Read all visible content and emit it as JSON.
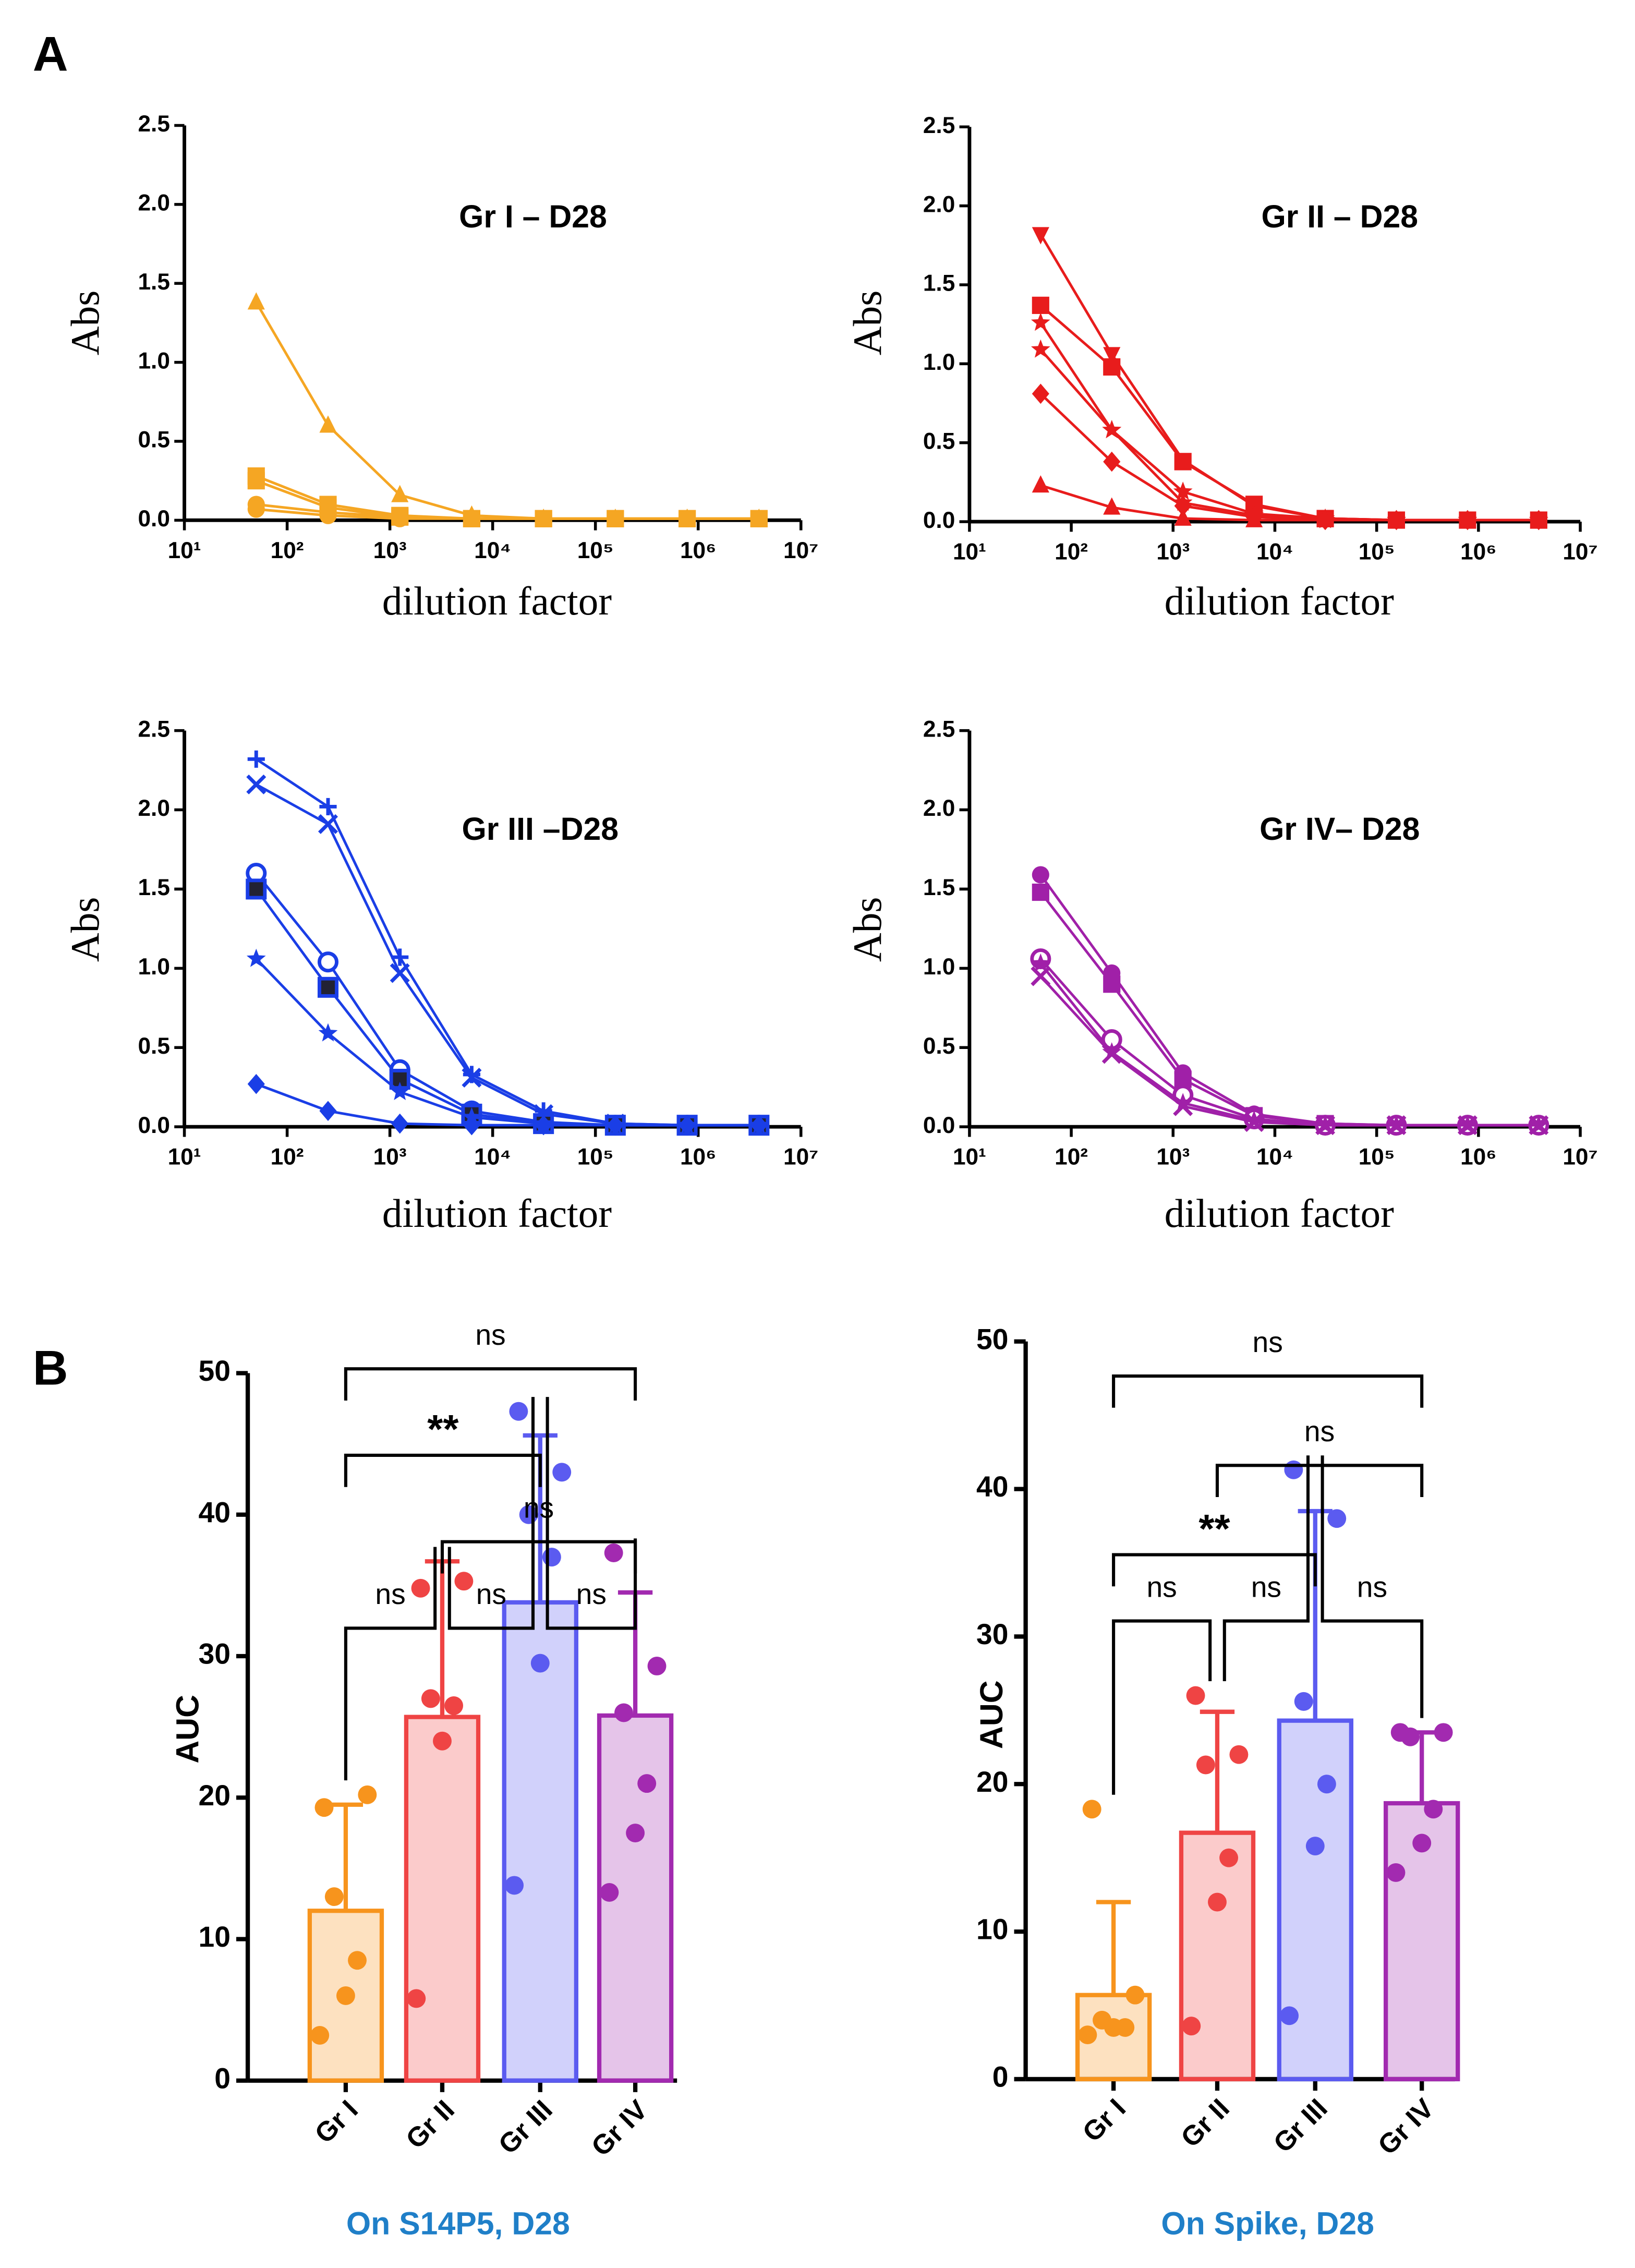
{
  "panel_labels": [
    "A",
    "B"
  ],
  "chart_data": [
    {
      "type": "line",
      "title": "Gr I – D28",
      "ylabel": "Abs",
      "xlabel": "dilution factor",
      "xscale": "log",
      "xlim": [
        10,
        10000000
      ],
      "xticks": [
        {
          "value": 10,
          "label": "10¹"
        },
        {
          "value": 100,
          "label": "10²"
        },
        {
          "value": 1000,
          "label": "10³"
        },
        {
          "value": 10000,
          "label": "10⁴"
        },
        {
          "value": 100000,
          "label": "10⁵"
        },
        {
          "value": 1000000,
          "label": "10⁶"
        },
        {
          "value": 10000000,
          "label": "10⁷"
        }
      ],
      "ylim": [
        0,
        2.5
      ],
      "yticks": [
        {
          "value": 0,
          "label": "0.0"
        },
        {
          "value": 0.5,
          "label": "0.5"
        },
        {
          "value": 1,
          "label": "1.0"
        },
        {
          "value": 1.5,
          "label": "1.5"
        },
        {
          "value": 2,
          "label": "2.0"
        },
        {
          "value": 2.5,
          "label": "2.5"
        }
      ],
      "x": [
        50,
        250,
        1250,
        6250,
        31250,
        156250,
        781250,
        3906250
      ],
      "series": [
        {
          "color": "#f5a623",
          "marker": "triangle",
          "values": [
            1.38,
            0.6,
            0.16,
            0.03,
            0.01,
            0.01,
            0.01,
            0.01
          ]
        },
        {
          "color": "#f5a623",
          "marker": "square",
          "values": [
            0.28,
            0.1,
            0.03,
            0.01,
            0.01,
            0.01,
            0.01,
            0.01
          ]
        },
        {
          "color": "#f5a623",
          "marker": "square",
          "values": [
            0.25,
            0.08,
            0.02,
            0.01,
            0.01,
            0.01,
            0.01,
            0.01
          ]
        },
        {
          "color": "#f5a623",
          "marker": "circle",
          "values": [
            0.1,
            0.05,
            0.02,
            0.01,
            0.01,
            0.01,
            0.01,
            0.01
          ]
        },
        {
          "color": "#f5a623",
          "marker": "circle",
          "values": [
            0.07,
            0.03,
            0.01,
            0.01,
            0.01,
            0.01,
            0.01,
            0.01
          ]
        }
      ]
    },
    {
      "type": "line",
      "title": "Gr II – D28",
      "ylabel": "Abs",
      "xlabel": "dilution factor",
      "xscale": "log",
      "xlim": [
        10,
        10000000
      ],
      "xticks": [
        {
          "value": 10,
          "label": "10¹"
        },
        {
          "value": 100,
          "label": "10²"
        },
        {
          "value": 1000,
          "label": "10³"
        },
        {
          "value": 10000,
          "label": "10⁴"
        },
        {
          "value": 100000,
          "label": "10⁵"
        },
        {
          "value": 1000000,
          "label": "10⁶"
        },
        {
          "value": 10000000,
          "label": "10⁷"
        }
      ],
      "ylim": [
        0,
        2.5
      ],
      "yticks": [
        {
          "value": 0,
          "label": "0.0"
        },
        {
          "value": 0.5,
          "label": "0.5"
        },
        {
          "value": 1,
          "label": "1.0"
        },
        {
          "value": 1.5,
          "label": "1.5"
        },
        {
          "value": 2,
          "label": "2.0"
        },
        {
          "value": 2.5,
          "label": "2.5"
        }
      ],
      "x": [
        50,
        250,
        1250,
        6250,
        31250,
        156250,
        781250,
        3906250
      ],
      "series": [
        {
          "color": "#e81c1c",
          "marker": "triangle-down",
          "values": [
            1.82,
            1.06,
            0.39,
            0.1,
            0.02,
            0.01,
            0.01,
            0.01
          ]
        },
        {
          "color": "#e81c1c",
          "marker": "square",
          "values": [
            1.37,
            0.98,
            0.38,
            0.11,
            0.02,
            0.01,
            0.01,
            0.01
          ]
        },
        {
          "color": "#e81c1c",
          "marker": "star",
          "values": [
            1.26,
            0.58,
            0.19,
            0.05,
            0.02,
            0.01,
            0.01,
            0.01
          ]
        },
        {
          "color": "#e81c1c",
          "marker": "star",
          "values": [
            1.09,
            0.58,
            0.12,
            0.04,
            0.01,
            0.01,
            0.01,
            0.01
          ]
        },
        {
          "color": "#e81c1c",
          "marker": "diamond",
          "values": [
            0.81,
            0.38,
            0.1,
            0.03,
            0.01,
            0.01,
            0.01,
            0.01
          ]
        },
        {
          "color": "#e81c1c",
          "marker": "triangle",
          "values": [
            0.23,
            0.09,
            0.02,
            0.01,
            0.01,
            0.01,
            0.01,
            0.01
          ]
        }
      ]
    },
    {
      "type": "line",
      "title": "Gr III –D28",
      "ylabel": "Abs",
      "xlabel": "dilution factor",
      "xscale": "log",
      "xlim": [
        10,
        10000000
      ],
      "xticks": [
        {
          "value": 10,
          "label": "10¹"
        },
        {
          "value": 100,
          "label": "10²"
        },
        {
          "value": 1000,
          "label": "10³"
        },
        {
          "value": 10000,
          "label": "10⁴"
        },
        {
          "value": 100000,
          "label": "10⁵"
        },
        {
          "value": 1000000,
          "label": "10⁶"
        },
        {
          "value": 10000000,
          "label": "10⁷"
        }
      ],
      "ylim": [
        0,
        2.5
      ],
      "yticks": [
        {
          "value": 0,
          "label": "0.0"
        },
        {
          "value": 0.5,
          "label": "0.5"
        },
        {
          "value": 1,
          "label": "1.0"
        },
        {
          "value": 1.5,
          "label": "1.5"
        },
        {
          "value": 2,
          "label": "2.0"
        },
        {
          "value": 2.5,
          "label": "2.5"
        }
      ],
      "x": [
        50,
        250,
        1250,
        6250,
        31250,
        156250,
        781250,
        3906250
      ],
      "series": [
        {
          "color": "#1a3ee6",
          "marker": "plus",
          "values": [
            2.32,
            2.02,
            1.07,
            0.33,
            0.1,
            0.02,
            0.01,
            0.01
          ]
        },
        {
          "color": "#1a3ee6",
          "marker": "x",
          "values": [
            2.16,
            1.91,
            0.97,
            0.31,
            0.08,
            0.02,
            0.01,
            0.01
          ]
        },
        {
          "color": "#1a3ee6",
          "marker": "circle-dot",
          "values": [
            1.6,
            1.04,
            0.36,
            0.1,
            0.03,
            0.01,
            0.01,
            0.01
          ]
        },
        {
          "color": "#1a3ee6",
          "marker": "square-dot",
          "values": [
            1.5,
            0.88,
            0.3,
            0.08,
            0.02,
            0.01,
            0.01,
            0.01
          ]
        },
        {
          "color": "#1a3ee6",
          "marker": "star",
          "values": [
            1.06,
            0.59,
            0.22,
            0.06,
            0.02,
            0.01,
            0.01,
            0.01
          ]
        },
        {
          "color": "#1a3ee6",
          "marker": "diamond",
          "values": [
            0.27,
            0.1,
            0.02,
            0.01,
            0.01,
            0.01,
            0.01,
            0.01
          ]
        }
      ]
    },
    {
      "type": "line",
      "title": "Gr IV– D28",
      "ylabel": "Abs",
      "xlabel": "dilution factor",
      "xscale": "log",
      "xlim": [
        10,
        10000000
      ],
      "xticks": [
        {
          "value": 10,
          "label": "10¹"
        },
        {
          "value": 100,
          "label": "10²"
        },
        {
          "value": 1000,
          "label": "10³"
        },
        {
          "value": 10000,
          "label": "10⁴"
        },
        {
          "value": 100000,
          "label": "10⁵"
        },
        {
          "value": 1000000,
          "label": "10⁶"
        },
        {
          "value": 10000000,
          "label": "10⁷"
        }
      ],
      "ylim": [
        0,
        2.5
      ],
      "yticks": [
        {
          "value": 0,
          "label": "0.0"
        },
        {
          "value": 0.5,
          "label": "0.5"
        },
        {
          "value": 1,
          "label": "1.0"
        },
        {
          "value": 1.5,
          "label": "1.5"
        },
        {
          "value": 2,
          "label": "2.0"
        },
        {
          "value": 2.5,
          "label": "2.5"
        }
      ],
      "x": [
        50,
        250,
        1250,
        6250,
        31250,
        156250,
        781250,
        3906250
      ],
      "series": [
        {
          "color": "#a020a8",
          "marker": "circle",
          "values": [
            1.59,
            0.97,
            0.34,
            0.08,
            0.02,
            0.01,
            0.01,
            0.01
          ]
        },
        {
          "color": "#a020a8",
          "marker": "square",
          "values": [
            1.48,
            0.9,
            0.3,
            0.07,
            0.02,
            0.01,
            0.01,
            0.01
          ]
        },
        {
          "color": "#a020a8",
          "marker": "circle-dot",
          "values": [
            1.06,
            0.55,
            0.2,
            0.05,
            0.01,
            0.01,
            0.01,
            0.01
          ]
        },
        {
          "color": "#a020a8",
          "marker": "star",
          "values": [
            1.03,
            0.47,
            0.15,
            0.04,
            0.01,
            0.01,
            0.01,
            0.01
          ]
        },
        {
          "color": "#a020a8",
          "marker": "x",
          "values": [
            0.95,
            0.46,
            0.13,
            0.03,
            0.01,
            0.01,
            0.01,
            0.01
          ]
        }
      ]
    },
    {
      "type": "bar",
      "ylabel": "AUC",
      "xlabel": "On S14P5, D28",
      "ylim": [
        0,
        50
      ],
      "yticks": [
        0,
        10,
        20,
        30,
        40,
        50
      ],
      "categories": [
        "Gr I",
        "Gr II",
        "Gr III",
        "Gr IV"
      ],
      "colors": [
        "#f7941d",
        "#ef4444",
        "#5b5bf0",
        "#a22ab0"
      ],
      "values": [
        12,
        25.7,
        33.8,
        25.8
      ],
      "errors": [
        7.5,
        11,
        11.8,
        8.7
      ],
      "points": [
        [
          19.3,
          20.2,
          13,
          8.5,
          6,
          3.2
        ],
        [
          34.8,
          35.3,
          27,
          26.5,
          24,
          5.8
        ],
        [
          47.3,
          43,
          40,
          37,
          29.5,
          13.8
        ],
        [
          37.3,
          29.3,
          26,
          21,
          17.5,
          13.3
        ]
      ],
      "comparisons": [
        {
          "groups": [
            0,
            3
          ],
          "label": "ns"
        },
        {
          "groups": [
            0,
            2
          ],
          "label": "**"
        },
        {
          "groups": [
            1,
            3
          ],
          "label": "ns"
        },
        {
          "groups": [
            0,
            1
          ],
          "label": "ns"
        },
        {
          "groups": [
            1,
            2
          ],
          "label": "ns"
        },
        {
          "groups": [
            2,
            3
          ],
          "label": "ns"
        }
      ]
    },
    {
      "type": "bar",
      "ylabel": "AUC",
      "xlabel": "On Spike, D28",
      "ylim": [
        0,
        50
      ],
      "yticks": [
        0,
        10,
        20,
        30,
        40,
        50
      ],
      "categories": [
        "Gr I",
        "Gr II",
        "Gr III",
        "Gr IV"
      ],
      "colors": [
        "#f7941d",
        "#ef4444",
        "#5b5bf0",
        "#a22ab0"
      ],
      "values": [
        5.7,
        16.7,
        24.3,
        18.7
      ],
      "errors": [
        6.3,
        8.2,
        14.2,
        4.8
      ],
      "points": [
        [
          18.3,
          5.7,
          4,
          3.5,
          3.5,
          3
        ],
        [
          26,
          22,
          21.3,
          15,
          12,
          3.6
        ],
        [
          41.3,
          38,
          25.6,
          20,
          15.8,
          4.3
        ],
        [
          23.5,
          23.5,
          23.2,
          18.3,
          16,
          14
        ]
      ],
      "comparisons": [
        {
          "groups": [
            0,
            3
          ],
          "label": "ns"
        },
        {
          "groups": [
            1,
            3
          ],
          "label": "ns"
        },
        {
          "groups": [
            0,
            2
          ],
          "label": "**"
        },
        {
          "groups": [
            0,
            1
          ],
          "label": "ns"
        },
        {
          "groups": [
            1,
            2
          ],
          "label": "ns"
        },
        {
          "groups": [
            2,
            3
          ],
          "label": "ns"
        }
      ]
    }
  ]
}
